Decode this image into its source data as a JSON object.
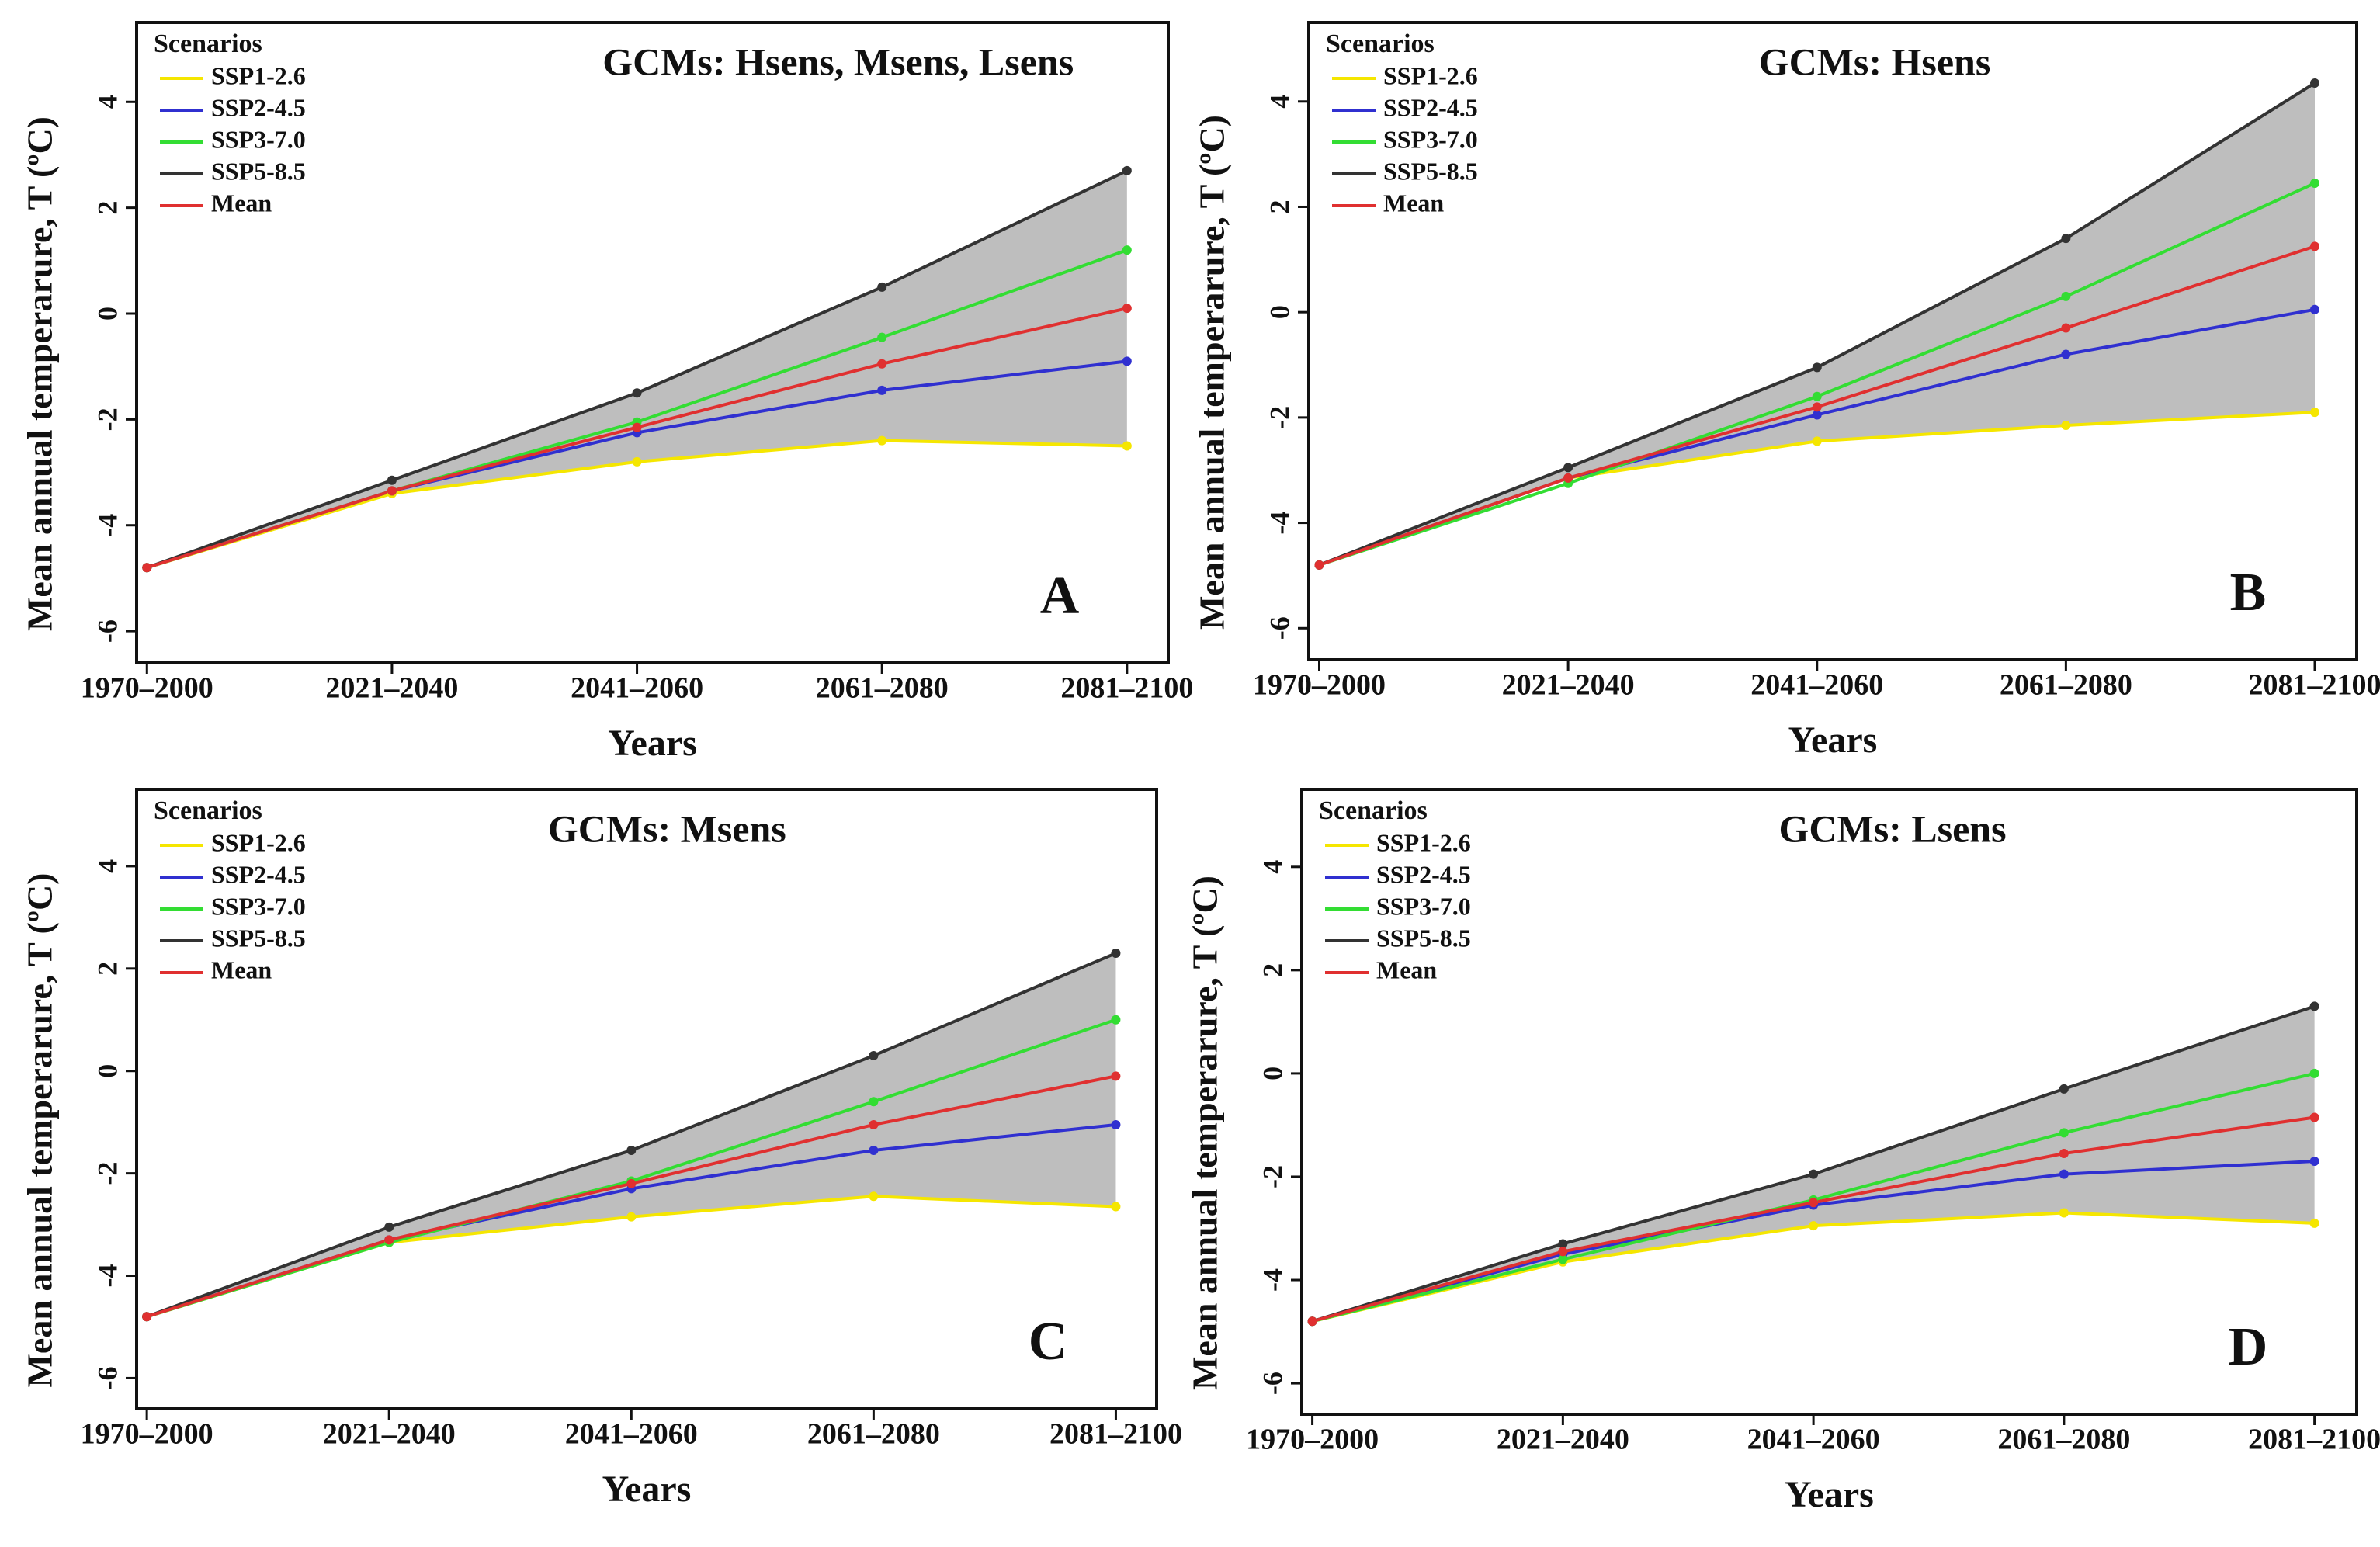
{
  "chart_data": [
    {
      "type": "line",
      "panel_label": "A",
      "title": "GCMs: Hsens, Msens, Lsens",
      "legend_title": "Scenarios",
      "x_label": "Years",
      "y_label": "Mean annual temperarure, T (ºC)",
      "categories": [
        "1970–2000",
        "2021–2040",
        "2041–2060",
        "2061–2080",
        "2081–2100"
      ],
      "series": [
        {
          "name": "SSP1-2.6",
          "color": "#f5e600",
          "values": [
            -4.8,
            -3.4,
            -2.8,
            -2.4,
            -2.5
          ]
        },
        {
          "name": "SSP2-4.5",
          "color": "#3030d0",
          "values": [
            -4.8,
            -3.35,
            -2.25,
            -1.45,
            -0.9
          ]
        },
        {
          "name": "SSP3-7.0",
          "color": "#33dd33",
          "values": [
            -4.8,
            -3.35,
            -2.05,
            -0.45,
            1.2
          ]
        },
        {
          "name": "SSP5-8.5",
          "color": "#333333",
          "values": [
            -4.8,
            -3.15,
            -1.5,
            0.5,
            2.7
          ]
        },
        {
          "name": "Mean",
          "color": "#e03030",
          "values": [
            -4.8,
            -3.35,
            -2.15,
            -0.95,
            0.1
          ]
        }
      ],
      "band": {
        "lower": 0,
        "upper": 3,
        "color": "#bebebe"
      },
      "ylim": [
        -6.6,
        5.5
      ],
      "yticks": [
        -6,
        -4,
        -2,
        0,
        2,
        4
      ]
    },
    {
      "type": "line",
      "panel_label": "B",
      "title": "GCMs: Hsens",
      "legend_title": "Scenarios",
      "x_label": "Years",
      "y_label": "Mean annual temperarure, T (ºC)",
      "categories": [
        "1970–2000",
        "2021–2040",
        "2041–2060",
        "2061–2080",
        "2081–2100"
      ],
      "series": [
        {
          "name": "SSP1-2.6",
          "color": "#f5e600",
          "values": [
            -4.8,
            -3.15,
            -2.45,
            -2.15,
            -1.9
          ]
        },
        {
          "name": "SSP2-4.5",
          "color": "#3030d0",
          "values": [
            -4.8,
            -3.15,
            -1.95,
            -0.8,
            0.05
          ]
        },
        {
          "name": "SSP3-7.0",
          "color": "#33dd33",
          "values": [
            -4.8,
            -3.25,
            -1.6,
            0.3,
            2.45
          ]
        },
        {
          "name": "SSP5-8.5",
          "color": "#333333",
          "values": [
            -4.8,
            -2.95,
            -1.05,
            1.4,
            4.35
          ]
        },
        {
          "name": "Mean",
          "color": "#e03030",
          "values": [
            -4.8,
            -3.15,
            -1.8,
            -0.3,
            1.25
          ]
        }
      ],
      "band": {
        "lower": 0,
        "upper": 3,
        "color": "#bebebe"
      },
      "ylim": [
        -6.6,
        5.5
      ],
      "yticks": [
        -6,
        -4,
        -2,
        0,
        2,
        4
      ]
    },
    {
      "type": "line",
      "panel_label": "C",
      "title": "GCMs: Msens",
      "legend_title": "Scenarios",
      "x_label": "Years",
      "y_label": "Mean annual temperarure, T (ºC)",
      "categories": [
        "1970–2000",
        "2021–2040",
        "2041–2060",
        "2061–2080",
        "2081–2100"
      ],
      "series": [
        {
          "name": "SSP1-2.6",
          "color": "#f5e600",
          "values": [
            -4.8,
            -3.35,
            -2.85,
            -2.45,
            -2.65
          ]
        },
        {
          "name": "SSP2-4.5",
          "color": "#3030d0",
          "values": [
            -4.8,
            -3.3,
            -2.3,
            -1.55,
            -1.05
          ]
        },
        {
          "name": "SSP3-7.0",
          "color": "#33dd33",
          "values": [
            -4.8,
            -3.35,
            -2.15,
            -0.6,
            1.0
          ]
        },
        {
          "name": "SSP5-8.5",
          "color": "#333333",
          "values": [
            -4.8,
            -3.05,
            -1.55,
            0.3,
            2.3
          ]
        },
        {
          "name": "Mean",
          "color": "#e03030",
          "values": [
            -4.8,
            -3.3,
            -2.2,
            -1.05,
            -0.1
          ]
        }
      ],
      "band": {
        "lower": 0,
        "upper": 3,
        "color": "#bebebe"
      },
      "ylim": [
        -6.6,
        5.5
      ],
      "yticks": [
        -6,
        -4,
        -2,
        0,
        2,
        4
      ]
    },
    {
      "type": "line",
      "panel_label": "D",
      "title": "GCMs: Lsens",
      "legend_title": "Scenarios",
      "x_label": "Years",
      "y_label": "Mean annual temperarure, T (ºC)",
      "categories": [
        "1970–2000",
        "2021–2040",
        "2041–2060",
        "2061–2080",
        "2081–2100"
      ],
      "series": [
        {
          "name": "SSP1-2.6",
          "color": "#f5e600",
          "values": [
            -4.8,
            -3.65,
            -2.95,
            -2.7,
            -2.9
          ]
        },
        {
          "name": "SSP2-4.5",
          "color": "#3030d0",
          "values": [
            -4.8,
            -3.5,
            -2.55,
            -1.95,
            -1.7
          ]
        },
        {
          "name": "SSP3-7.0",
          "color": "#33dd33",
          "values": [
            -4.8,
            -3.6,
            -2.45,
            -1.15,
            0.0
          ]
        },
        {
          "name": "SSP5-8.5",
          "color": "#333333",
          "values": [
            -4.8,
            -3.3,
            -1.95,
            -0.3,
            1.3
          ]
        },
        {
          "name": "Mean",
          "color": "#e03030",
          "values": [
            -4.8,
            -3.45,
            -2.5,
            -1.55,
            -0.85
          ]
        }
      ],
      "band": {
        "lower": 0,
        "upper": 3,
        "color": "#bebebe"
      },
      "ylim": [
        -6.6,
        5.5
      ],
      "yticks": [
        -6,
        -4,
        -2,
        0,
        2,
        4
      ]
    }
  ]
}
